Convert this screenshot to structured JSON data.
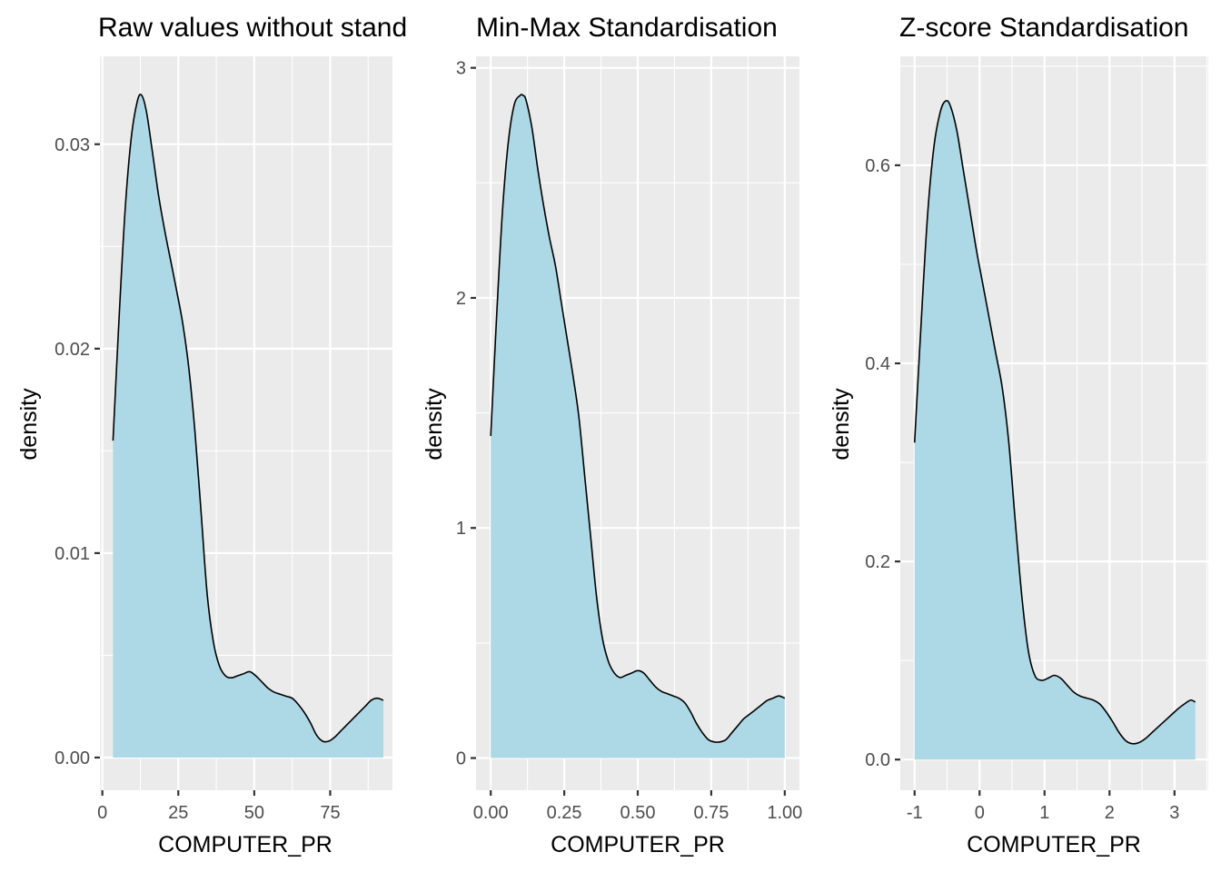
{
  "colors": {
    "panel_background": "#ebebeb",
    "grid": "#ffffff",
    "fill": "#add8e6",
    "line": "#000000",
    "tick_text": "#4d4d4d"
  },
  "chart_data": [
    {
      "type": "area",
      "title": "Raw values without standardisation",
      "xlabel": "COMPUTER_PR",
      "ylabel": "density",
      "xlim": [
        -0.8,
        95.5
      ],
      "ylim": [
        -0.0016,
        0.0343
      ],
      "xticks": [
        0,
        25,
        50,
        75
      ],
      "xtick_labels": [
        "0",
        "25",
        "50",
        "75"
      ],
      "yticks": [
        0.0,
        0.01,
        0.02,
        0.03
      ],
      "ytick_labels": [
        "0.00",
        "0.01",
        "0.02",
        "0.03"
      ],
      "grid": true,
      "series": [
        {
          "x": [
            3.5,
            5.5,
            7.5,
            9.5,
            11.5,
            12.9,
            14.5,
            16.5,
            18.5,
            20.5,
            22.5,
            24.5,
            26.5,
            28.5,
            30.5,
            32.5,
            34.5,
            36.5,
            38.5,
            40.5,
            42.5,
            44.5,
            46.5,
            48.5,
            50.5,
            52.5,
            54.5,
            56.5,
            58.5,
            60.5,
            62.5,
            64.5,
            66.5,
            68.5,
            70.5,
            72.5,
            74.5,
            76.5,
            78.5,
            80.5,
            82.5,
            84.5,
            86.5,
            88.5,
            90.5,
            92.5
          ],
          "y": [
            0.0155,
            0.0215,
            0.0268,
            0.0303,
            0.0321,
            0.0324,
            0.0316,
            0.0296,
            0.0275,
            0.0258,
            0.0243,
            0.0228,
            0.0212,
            0.019,
            0.0159,
            0.012,
            0.008,
            0.0057,
            0.0045,
            0.004,
            0.0039,
            0.004,
            0.0041,
            0.0042,
            0.004,
            0.0037,
            0.0034,
            0.0032,
            0.0031,
            0.003,
            0.0029,
            0.0026,
            0.0022,
            0.0017,
            0.0011,
            0.0008,
            0.0008,
            0.001,
            0.0013,
            0.0016,
            0.0019,
            0.0022,
            0.0025,
            0.0028,
            0.0029,
            0.0028
          ]
        }
      ]
    },
    {
      "type": "area",
      "title": "Min-Max Standardisation",
      "xlabel": "COMPUTER_PR",
      "ylabel": "density",
      "xlim": [
        -0.05,
        1.05
      ],
      "ylim": [
        -0.14,
        3.05
      ],
      "xticks": [
        0,
        0.25,
        0.5,
        0.75,
        1.0
      ],
      "xtick_labels": [
        "0.00",
        "0.25",
        "0.50",
        "0.75",
        "1.00"
      ],
      "yticks": [
        0,
        1,
        2,
        3
      ],
      "ytick_labels": [
        "0",
        "1",
        "2",
        "3"
      ],
      "grid": true,
      "series": [
        {
          "x": [
            0.0,
            0.02,
            0.04,
            0.06,
            0.08,
            0.1,
            0.11,
            0.12,
            0.14,
            0.16,
            0.18,
            0.2,
            0.22,
            0.24,
            0.26,
            0.28,
            0.3,
            0.32,
            0.34,
            0.36,
            0.38,
            0.4,
            0.42,
            0.44,
            0.46,
            0.48,
            0.5,
            0.52,
            0.54,
            0.56,
            0.58,
            0.6,
            0.62,
            0.64,
            0.66,
            0.68,
            0.7,
            0.72,
            0.74,
            0.76,
            0.78,
            0.8,
            0.82,
            0.84,
            0.86,
            0.88,
            0.9,
            0.92,
            0.94,
            0.96,
            0.98,
            1.0
          ],
          "y": [
            1.4,
            1.92,
            2.38,
            2.68,
            2.84,
            2.88,
            2.88,
            2.86,
            2.74,
            2.56,
            2.4,
            2.26,
            2.14,
            1.98,
            1.82,
            1.66,
            1.48,
            1.22,
            0.96,
            0.7,
            0.52,
            0.42,
            0.37,
            0.35,
            0.36,
            0.37,
            0.38,
            0.37,
            0.34,
            0.31,
            0.29,
            0.28,
            0.27,
            0.26,
            0.24,
            0.2,
            0.15,
            0.11,
            0.08,
            0.07,
            0.07,
            0.08,
            0.11,
            0.14,
            0.17,
            0.19,
            0.21,
            0.23,
            0.25,
            0.26,
            0.27,
            0.26
          ]
        }
      ]
    },
    {
      "type": "area",
      "title": "Z-score Standardisation",
      "xlabel": "COMPUTER_PR",
      "ylabel": "density",
      "xlim": [
        -1.22,
        3.52
      ],
      "ylim": [
        -0.031,
        0.71
      ],
      "xticks": [
        -1,
        0,
        1,
        2,
        3
      ],
      "xtick_labels": [
        "-1",
        "0",
        "1",
        "2",
        "3"
      ],
      "yticks": [
        0.0,
        0.2,
        0.4,
        0.6
      ],
      "ytick_labels": [
        "0.0",
        "0.2",
        "0.4",
        "0.6"
      ],
      "grid": true,
      "series": [
        {
          "x": [
            -1.0,
            -0.9,
            -0.8,
            -0.7,
            -0.6,
            -0.52,
            -0.45,
            -0.35,
            -0.25,
            -0.15,
            -0.05,
            0.05,
            0.15,
            0.25,
            0.35,
            0.45,
            0.55,
            0.65,
            0.75,
            0.85,
            0.95,
            1.05,
            1.15,
            1.25,
            1.35,
            1.45,
            1.55,
            1.65,
            1.75,
            1.85,
            1.95,
            2.05,
            2.15,
            2.25,
            2.35,
            2.45,
            2.55,
            2.65,
            2.75,
            2.85,
            2.95,
            3.05,
            3.15,
            3.25,
            3.32
          ],
          "y": [
            0.32,
            0.44,
            0.55,
            0.62,
            0.655,
            0.665,
            0.66,
            0.635,
            0.595,
            0.555,
            0.515,
            0.48,
            0.445,
            0.41,
            0.375,
            0.32,
            0.24,
            0.165,
            0.11,
            0.085,
            0.08,
            0.082,
            0.085,
            0.082,
            0.075,
            0.068,
            0.064,
            0.062,
            0.06,
            0.056,
            0.048,
            0.038,
            0.027,
            0.019,
            0.016,
            0.017,
            0.021,
            0.027,
            0.033,
            0.039,
            0.045,
            0.051,
            0.056,
            0.06,
            0.058
          ]
        }
      ]
    }
  ]
}
